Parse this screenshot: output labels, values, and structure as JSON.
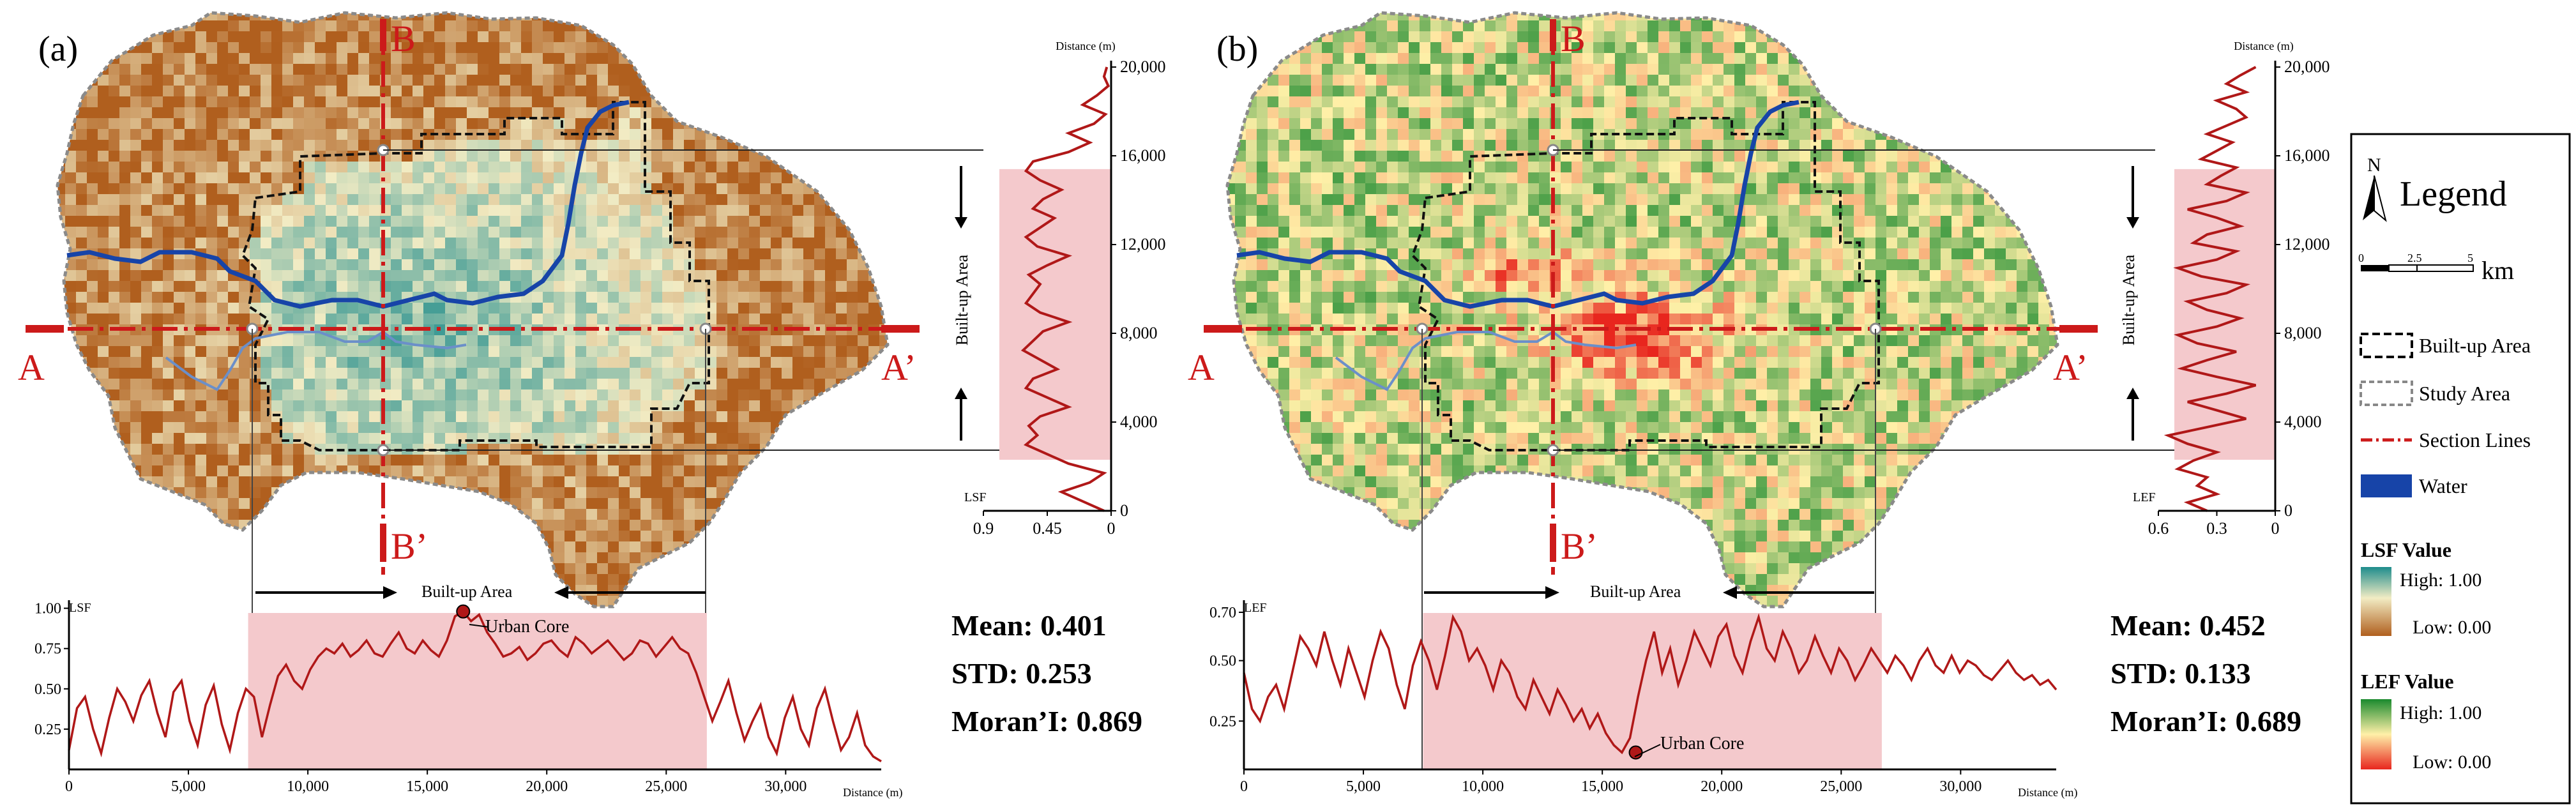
{
  "panels": [
    {
      "id": "a",
      "label": "(a)",
      "index_name": "LSF",
      "section_b": "B",
      "section_b_prime": "B’",
      "section_a": "A",
      "section_a_prime": "A’",
      "builtup_label": "Built-up Area",
      "urban_core_label": "Urban Core",
      "distance_label": "Distance (m)",
      "stats": {
        "mean": "Mean: 0.401",
        "std": "STD: 0.253",
        "moran": "Moran’I: 0.869"
      },
      "hprofile": {
        "yticks": [
          "1.00",
          "0.75",
          "0.50",
          "0.25"
        ],
        "ytick_values": [
          1.0,
          0.75,
          0.5,
          0.25
        ],
        "ymin": 0,
        "ymax": 1.05,
        "xticks": [
          "0",
          "5,000",
          "10,000",
          "15,000",
          "20,000",
          "25,000",
          "30,000"
        ],
        "xtick_values": [
          0,
          5000,
          10000,
          15000,
          20000,
          25000,
          30000
        ],
        "xmax": 34000,
        "builtup_range": [
          7500,
          26700
        ],
        "core_point": [
          16500,
          0.98
        ],
        "values": [
          0.12,
          0.38,
          0.45,
          0.25,
          0.1,
          0.32,
          0.5,
          0.42,
          0.3,
          0.46,
          0.55,
          0.35,
          0.2,
          0.48,
          0.55,
          0.3,
          0.15,
          0.4,
          0.52,
          0.28,
          0.12,
          0.35,
          0.5,
          0.45,
          0.2,
          0.4,
          0.58,
          0.65,
          0.55,
          0.5,
          0.62,
          0.7,
          0.75,
          0.72,
          0.78,
          0.7,
          0.74,
          0.8,
          0.72,
          0.7,
          0.78,
          0.85,
          0.75,
          0.72,
          0.8,
          0.74,
          0.7,
          0.8,
          0.95,
          0.98,
          0.92,
          0.96,
          0.85,
          0.78,
          0.7,
          0.72,
          0.76,
          0.68,
          0.72,
          0.78,
          0.8,
          0.74,
          0.7,
          0.82,
          0.78,
          0.72,
          0.76,
          0.8,
          0.74,
          0.68,
          0.72,
          0.8,
          0.78,
          0.7,
          0.76,
          0.82,
          0.75,
          0.72,
          0.6,
          0.45,
          0.3,
          0.42,
          0.55,
          0.35,
          0.18,
          0.3,
          0.4,
          0.2,
          0.1,
          0.32,
          0.45,
          0.25,
          0.15,
          0.38,
          0.5,
          0.3,
          0.12,
          0.2,
          0.35,
          0.15,
          0.08,
          0.05
        ]
      },
      "vprofile": {
        "xticks": [
          "0.9",
          "0.45",
          "0"
        ],
        "xtick_values": [
          0.9,
          0.45,
          0
        ],
        "yticks": [
          "0",
          "4,000",
          "8,000",
          "12,000",
          "16,000",
          "20,000"
        ],
        "ytick_values": [
          0,
          4000,
          8000,
          12000,
          16000,
          20000
        ],
        "ymax": 20000,
        "builtup_range": [
          2300,
          15400
        ],
        "values": [
          0.05,
          0.2,
          0.35,
          0.15,
          0.05,
          0.3,
          0.45,
          0.6,
          0.52,
          0.58,
          0.5,
          0.3,
          0.45,
          0.6,
          0.55,
          0.38,
          0.5,
          0.62,
          0.55,
          0.48,
          0.3,
          0.5,
          0.6,
          0.55,
          0.5,
          0.58,
          0.45,
          0.3,
          0.52,
          0.6,
          0.5,
          0.4,
          0.55,
          0.48,
          0.35,
          0.5,
          0.6,
          0.55,
          0.3,
          0.15,
          0.3,
          0.12,
          0.04,
          0.2,
          0.1,
          0.02,
          0.05,
          0.03
        ]
      }
    },
    {
      "id": "b",
      "label": "(b)",
      "index_name": "LEF",
      "section_b": "B",
      "section_b_prime": "B’",
      "section_a": "A",
      "section_a_prime": "A’",
      "builtup_label": "Built-up Area",
      "urban_core_label": "Urban Core",
      "distance_label": "Distance (m)",
      "stats": {
        "mean": "Mean: 0.452",
        "std": "STD: 0.133",
        "moran": "Moran’I: 0.689"
      },
      "hprofile": {
        "yticks": [
          "0.70",
          "0.50",
          "0.25"
        ],
        "ytick_values": [
          0.7,
          0.5,
          0.25
        ],
        "ymin": 0.05,
        "ymax": 0.75,
        "xticks": [
          "0",
          "5,000",
          "10,000",
          "15,000",
          "20,000",
          "25,000",
          "30,000"
        ],
        "xtick_values": [
          0,
          5000,
          10000,
          15000,
          20000,
          25000,
          30000
        ],
        "xmax": 34000,
        "builtup_range": [
          7500,
          26700
        ],
        "core_point": [
          16400,
          0.12
        ],
        "values": [
          0.45,
          0.3,
          0.25,
          0.35,
          0.4,
          0.3,
          0.45,
          0.6,
          0.55,
          0.48,
          0.62,
          0.5,
          0.4,
          0.55,
          0.45,
          0.35,
          0.5,
          0.62,
          0.55,
          0.4,
          0.3,
          0.48,
          0.58,
          0.5,
          0.38,
          0.52,
          0.68,
          0.62,
          0.5,
          0.55,
          0.48,
          0.38,
          0.5,
          0.45,
          0.35,
          0.3,
          0.42,
          0.35,
          0.28,
          0.38,
          0.32,
          0.25,
          0.3,
          0.22,
          0.28,
          0.2,
          0.15,
          0.12,
          0.18,
          0.35,
          0.5,
          0.62,
          0.45,
          0.55,
          0.4,
          0.5,
          0.62,
          0.55,
          0.48,
          0.6,
          0.65,
          0.52,
          0.45,
          0.58,
          0.68,
          0.55,
          0.5,
          0.62,
          0.55,
          0.45,
          0.5,
          0.6,
          0.52,
          0.45,
          0.55,
          0.5,
          0.42,
          0.48,
          0.55,
          0.5,
          0.45,
          0.52,
          0.48,
          0.42,
          0.5,
          0.55,
          0.48,
          0.45,
          0.52,
          0.45,
          0.5,
          0.48,
          0.44,
          0.42,
          0.46,
          0.5,
          0.45,
          0.42,
          0.44,
          0.4,
          0.42,
          0.38
        ]
      },
      "vprofile": {
        "xticks": [
          "0.6",
          "0.3",
          "0"
        ],
        "xtick_values": [
          0.6,
          0.3,
          0
        ],
        "yticks": [
          "0",
          "4,000",
          "8,000",
          "12,000",
          "16,000",
          "20,000"
        ],
        "ytick_values": [
          0,
          4000,
          8000,
          12000,
          16000,
          20000
        ],
        "ymax": 20000,
        "builtup_range": [
          2300,
          15400
        ],
        "values": [
          0.35,
          0.45,
          0.3,
          0.4,
          0.35,
          0.5,
          0.42,
          0.3,
          0.45,
          0.55,
          0.35,
          0.15,
          0.3,
          0.45,
          0.25,
          0.1,
          0.3,
          0.48,
          0.35,
          0.2,
          0.4,
          0.5,
          0.3,
          0.18,
          0.35,
          0.45,
          0.25,
          0.15,
          0.38,
          0.5,
          0.3,
          0.2,
          0.42,
          0.35,
          0.18,
          0.3,
          0.45,
          0.25,
          0.15,
          0.35,
          0.28,
          0.2,
          0.38,
          0.3,
          0.22,
          0.35,
          0.25,
          0.15,
          0.2,
          0.3,
          0.15,
          0.25,
          0.18,
          0.1
        ]
      }
    }
  ],
  "legend": {
    "title": "Legend",
    "north": "N",
    "scale_ticks": [
      "0",
      "2.5",
      "5"
    ],
    "scale_unit": "km",
    "items": [
      {
        "label": "Built-up Area"
      },
      {
        "label": "Study Area"
      },
      {
        "label": "Section Lines"
      },
      {
        "label": "Water"
      }
    ],
    "lsf_title": "LSF Value",
    "lsf_high": "High: 1.00",
    "lsf_low": "Low: 0.00",
    "lef_title": "LEF Value",
    "lef_high": "High: 1.00",
    "lef_low": "Low: 0.00"
  },
  "colors": {
    "profile_line": "#b01818",
    "profile_fill": "#f4c9cc",
    "section_line": "#cc1a1a",
    "water": "#1744a8",
    "lsf_high": "#1e8c8c",
    "lsf_mid": "#f2ecc4",
    "lsf_low": "#b05f1e",
    "lef_high": "#1a8a2e",
    "lef_mid": "#fff0a8",
    "lef_low": "#e8261e"
  }
}
